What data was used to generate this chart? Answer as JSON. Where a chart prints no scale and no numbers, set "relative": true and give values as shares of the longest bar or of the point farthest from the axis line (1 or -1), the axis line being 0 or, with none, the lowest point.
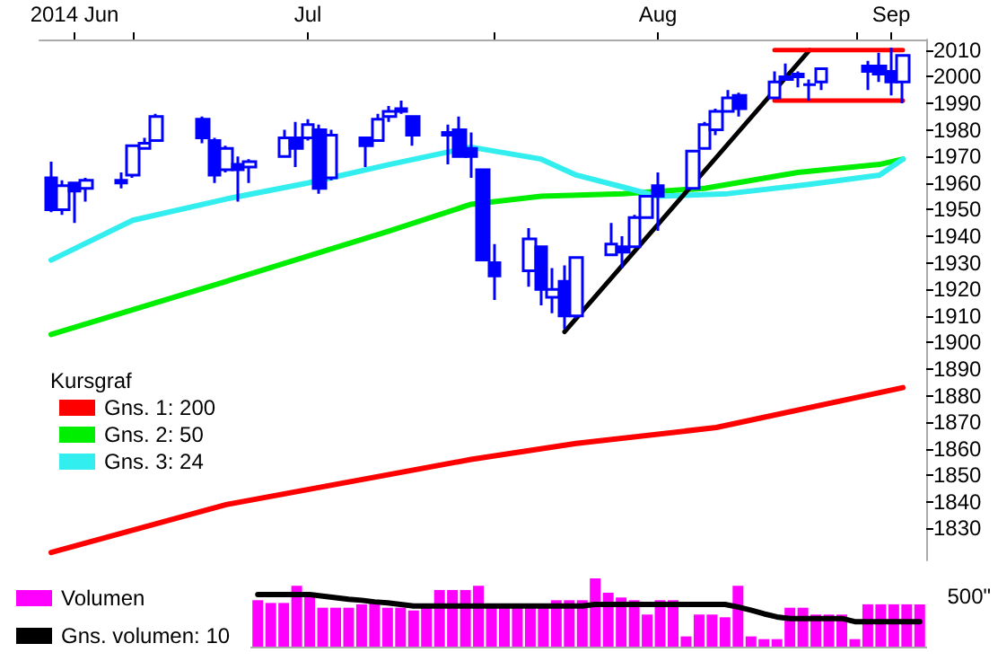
{
  "chart_data": [
    {
      "type": "candlestick",
      "legend_title": "Kursgraf",
      "legend": "bottom left",
      "marker": "none",
      "color": "#0000ff",
      "x": [
        "2014-06-24",
        "2014-06-25",
        "2014-06-26",
        "2014-06-27",
        "2014-06-30",
        "2014-07-01",
        "2014-07-02",
        "2014-07-03",
        "2014-07-07",
        "2014-07-08",
        "2014-07-09",
        "2014-07-10",
        "2014-07-11",
        "2014-07-14",
        "2014-07-15",
        "2014-07-16",
        "2014-07-17",
        "2014-07-18",
        "2014-07-21",
        "2014-07-22",
        "2014-07-23",
        "2014-07-24",
        "2014-07-25",
        "2014-07-28",
        "2014-07-29",
        "2014-07-30",
        "2014-07-31",
        "2014-08-01",
        "2014-08-04",
        "2014-08-05",
        "2014-08-06",
        "2014-08-07",
        "2014-08-08",
        "2014-08-11",
        "2014-08-12",
        "2014-08-13",
        "2014-08-14",
        "2014-08-15",
        "2014-08-18",
        "2014-08-19",
        "2014-08-20",
        "2014-08-21",
        "2014-08-22",
        "2014-08-25",
        "2014-08-26",
        "2014-08-27",
        "2014-08-28",
        "2014-08-29",
        "2014-09-02",
        "2014-09-03",
        "2014-09-04",
        "2014-09-05"
      ],
      "ohlc": [
        [
          1962,
          1968,
          1949,
          1950
        ],
        [
          1950,
          1961,
          1948,
          1959
        ],
        [
          1960,
          1960,
          1945,
          1957
        ],
        [
          1958,
          1962,
          1953,
          1961
        ],
        [
          1961,
          1964,
          1958,
          1960
        ],
        [
          1963,
          1974,
          1962,
          1974
        ],
        [
          1973,
          1977,
          1973,
          1975
        ],
        [
          1976,
          1986,
          1976,
          1985
        ],
        [
          1984,
          1985,
          1975,
          1977
        ],
        [
          1976,
          1977,
          1960,
          1963
        ],
        [
          1965,
          1974,
          1964,
          1973
        ],
        [
          1967,
          1970,
          1953,
          1965
        ],
        [
          1966,
          1969,
          1960,
          1968
        ],
        [
          1970,
          1980,
          1970,
          1977
        ],
        [
          1977,
          1983,
          1966,
          1973
        ],
        [
          1977,
          1984,
          1976,
          1982
        ],
        [
          1980,
          1982,
          1956,
          1958
        ],
        [
          1962,
          1980,
          1961,
          1978
        ],
        [
          1977,
          1977,
          1966,
          1974
        ],
        [
          1976,
          1986,
          1976,
          1984
        ],
        [
          1985,
          1989,
          1983,
          1987
        ],
        [
          1988,
          1991,
          1986,
          1987
        ],
        [
          1985,
          1985,
          1974,
          1978
        ],
        [
          1978,
          1982,
          1967,
          1979
        ],
        [
          1980,
          1985,
          1970,
          1970
        ],
        [
          1973,
          1979,
          1962,
          1970
        ],
        [
          1965,
          1965,
          1931,
          1931
        ],
        [
          1930,
          1937,
          1916,
          1925
        ],
        [
          1927,
          1943,
          1921,
          1939
        ],
        [
          1936,
          1936,
          1914,
          1920
        ],
        [
          1917,
          1928,
          1911,
          1920
        ],
        [
          1923,
          1929,
          1905,
          1910
        ],
        [
          1910,
          1932,
          1909,
          1932
        ],
        [
          1933,
          1945,
          1933,
          1937
        ],
        [
          1936,
          1940,
          1928,
          1934
        ],
        [
          1936,
          1948,
          1936,
          1947
        ],
        [
          1947,
          1955,
          1947,
          1955
        ],
        [
          1959,
          1964,
          1942,
          1955
        ],
        [
          1958,
          1972,
          1958,
          1972
        ],
        [
          1973,
          1983,
          1973,
          1982
        ],
        [
          1980,
          1988,
          1978,
          1987
        ],
        [
          1987,
          1995,
          1987,
          1992
        ],
        [
          1993,
          1994,
          1985,
          1988
        ],
        [
          1992,
          2002,
          1992,
          1998
        ],
        [
          1999,
          2005,
          1999,
          2000
        ],
        [
          2001,
          2002,
          1996,
          2000
        ],
        [
          1997,
          1999,
          1991,
          1997
        ],
        [
          1998,
          2003,
          1995,
          2003
        ],
        [
          2004,
          2006,
          1995,
          2002
        ],
        [
          2004,
          2009,
          1998,
          2001
        ],
        [
          2002,
          2011,
          1993,
          1998
        ],
        [
          1998,
          2008,
          1990,
          2008
        ]
      ],
      "series": [
        {
          "name": "Gns. 1: 200",
          "type": "line",
          "color": "#ff0000",
          "x": [
            "2014-06-24",
            "2014-07-09",
            "2014-07-30",
            "2014-08-08",
            "2014-08-20",
            "2014-09-05"
          ],
          "values": [
            1821,
            1839,
            1856,
            1862,
            1868,
            1883
          ]
        },
        {
          "name": "Gns. 2: 50",
          "type": "line",
          "color": "#00ee00",
          "x": [
            "2014-06-24",
            "2014-07-09",
            "2014-07-23",
            "2014-07-30",
            "2014-08-05",
            "2014-08-12",
            "2014-08-19",
            "2014-08-27",
            "2014-09-03",
            "2014-09-05"
          ],
          "values": [
            1903,
            1923,
            1942,
            1952,
            1955,
            1956,
            1958,
            1964,
            1967,
            1969
          ]
        },
        {
          "name": "Gns. 3: 24",
          "type": "line",
          "color": "#33eeee",
          "x": [
            "2014-06-24",
            "2014-07-01",
            "2014-07-09",
            "2014-07-16",
            "2014-07-23",
            "2014-07-30",
            "2014-08-05",
            "2014-08-08",
            "2014-08-12",
            "2014-08-15",
            "2014-08-21",
            "2014-08-28",
            "2014-09-03",
            "2014-09-05"
          ],
          "values": [
            1931,
            1946,
            1954,
            1960,
            1967,
            1973.5,
            1969,
            1963,
            1958.5,
            1955,
            1956,
            1959.5,
            1963,
            1969
          ]
        },
        {
          "type": "line",
          "color": "#000000",
          "x": [
            "2014-08-07",
            "2014-08-28"
          ],
          "values": [
            1904,
            2010
          ]
        },
        {
          "type": "line",
          "color": "#ff0000",
          "x": [
            "2014-08-25",
            "2014-09-05"
          ],
          "values": [
            2010,
            2010
          ]
        },
        {
          "type": "line",
          "color": "#ff0000",
          "x": [
            "2014-08-25",
            "2014-09-05"
          ],
          "values": [
            1991,
            1991
          ]
        }
      ],
      "xlim": [
        "2014-06-23",
        "2014-09-07"
      ],
      "xticks": [
        {
          "value": "2014-06-26",
          "label": "2014 Jun"
        },
        {
          "value": "2014-07-01",
          "label": null
        },
        {
          "value": "2014-07-16",
          "label": "Jul"
        },
        {
          "value": "2014-08-01",
          "label": null
        },
        {
          "value": "2014-08-15",
          "label": "Aug"
        },
        {
          "value": "2014-09-01",
          "label": null
        },
        {
          "value": "2014-09-04",
          "label": "Sep"
        }
      ],
      "ylim": [
        1818,
        2014
      ],
      "yticks": [
        1830,
        1840,
        1850,
        1860,
        1870,
        1880,
        1890,
        1900,
        1910,
        1920,
        1930,
        1940,
        1950,
        1960,
        1970,
        1980,
        1990,
        2000,
        2010
      ]
    },
    {
      "type": "bar",
      "relative": true,
      "legend": "left",
      "annotations": [
        "500\""
      ],
      "categories": [
        null,
        null,
        null,
        null,
        null,
        null,
        null,
        null,
        null,
        null,
        null,
        null,
        null,
        null,
        null,
        null,
        null,
        null,
        null,
        null,
        null,
        null,
        null,
        null,
        null,
        null,
        null,
        null,
        null,
        null,
        null,
        null,
        null,
        null,
        null,
        null,
        null,
        null,
        null,
        null,
        null,
        null,
        null,
        null,
        null,
        null,
        null,
        null,
        null,
        null,
        null,
        null
      ],
      "series": [
        {
          "name": "Volumen",
          "color": "#ff00ff",
          "values": [
            0.68,
            0.64,
            0.64,
            0.89,
            0.79,
            0.57,
            0.57,
            0.57,
            0.62,
            0.68,
            0.57,
            0.57,
            0.53,
            0.57,
            0.83,
            0.83,
            0.83,
            0.89,
            0.62,
            0.62,
            0.62,
            0.62,
            0.62,
            0.68,
            0.68,
            0.68,
            1,
            0.79,
            0.72,
            0.68,
            0.47,
            0.68,
            0.68,
            0.15,
            0.47,
            0.47,
            0.43,
            0.89,
            0.15,
            0.11,
            0.11,
            0.57,
            0.57,
            0.47,
            0.47,
            0.47,
            0.11,
            0.62,
            0.62,
            0.62,
            0.62,
            0.62
          ]
        }
      ]
    },
    {
      "type": "line",
      "relative": true,
      "legend": "left",
      "marker": "none",
      "categories": [
        null,
        null,
        null,
        null,
        null,
        null,
        null,
        null,
        null,
        null,
        null,
        null,
        null,
        null,
        null,
        null,
        null,
        null,
        null,
        null,
        null,
        null,
        null,
        null,
        null,
        null,
        null,
        null,
        null,
        null,
        null,
        null,
        null,
        null,
        null,
        null,
        null,
        null,
        null,
        null,
        null,
        null,
        null,
        null,
        null,
        null,
        null,
        null,
        null,
        null,
        null,
        null
      ],
      "series": [
        {
          "name": "Gns. volumen: 10",
          "color": "#000000",
          "values": [
            1,
            1,
            1,
            1,
            1,
            0.97,
            0.94,
            0.91,
            0.89,
            0.86,
            0.84,
            0.81,
            0.78,
            0.78,
            0.78,
            0.78,
            0.78,
            0.78,
            0.78,
            0.78,
            0.78,
            0.78,
            0.78,
            0.78,
            0.78,
            0.78,
            0.81,
            0.81,
            0.81,
            0.81,
            0.81,
            0.81,
            0.81,
            0.81,
            0.81,
            0.81,
            0.81,
            0.76,
            0.7,
            0.63,
            0.57,
            0.54,
            0.54,
            0.54,
            0.54,
            0.54,
            0.48,
            0.48,
            0.48,
            0.48,
            0.48,
            0.48
          ]
        }
      ]
    }
  ]
}
